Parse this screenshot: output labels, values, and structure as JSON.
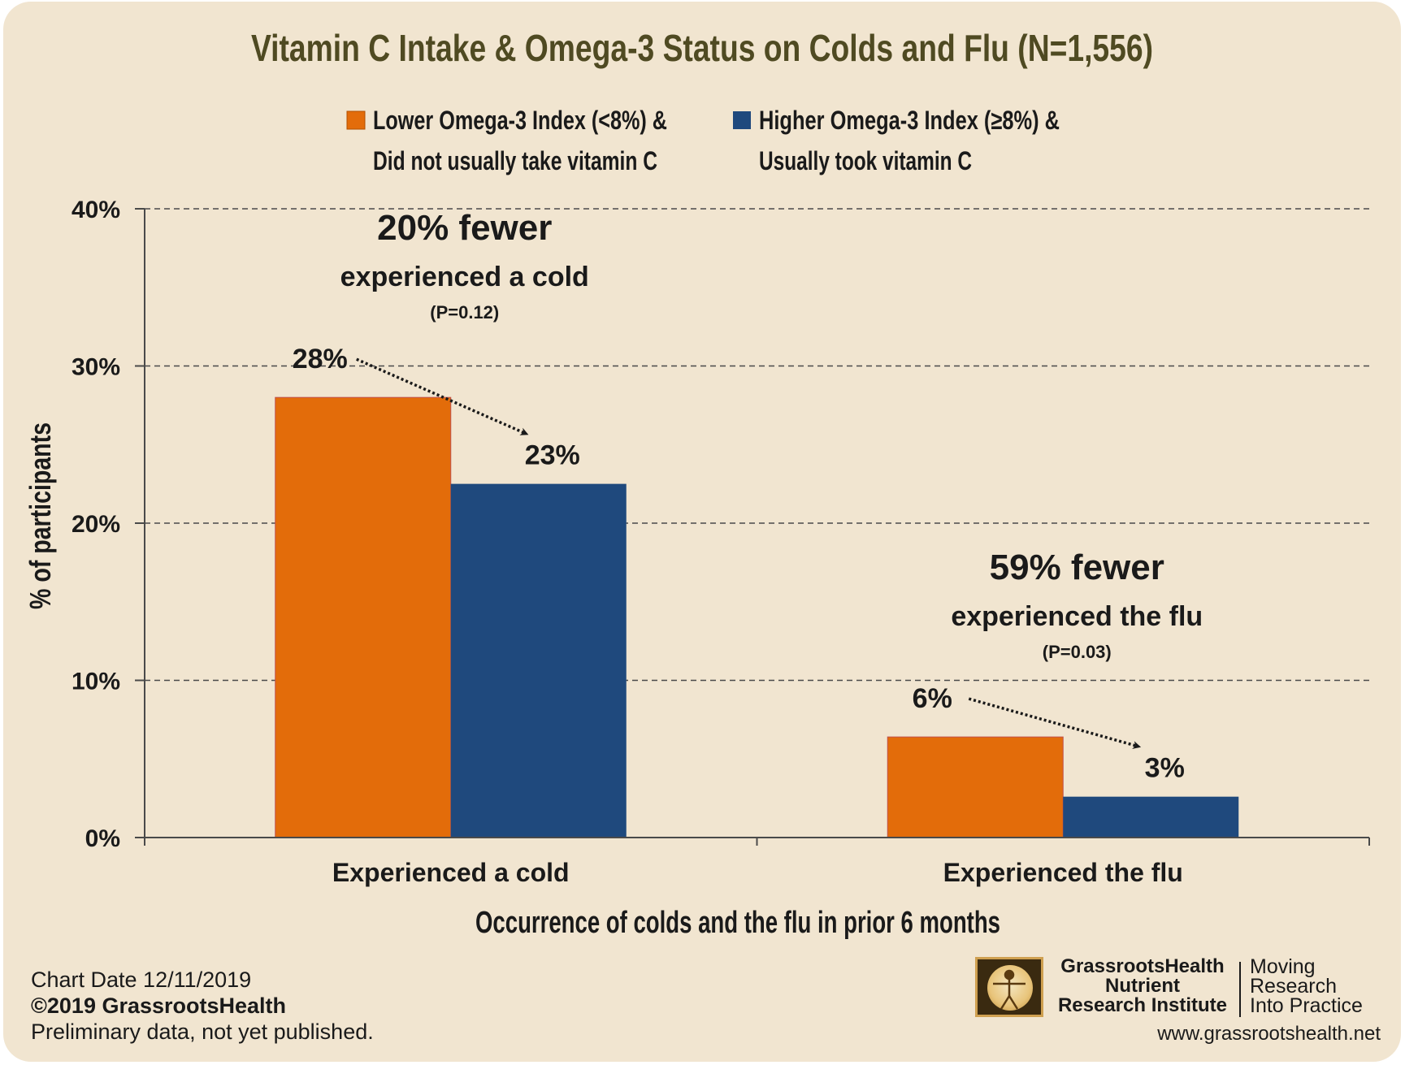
{
  "chart_data": {
    "type": "bar",
    "title": "Vitamin C Intake & Omega-3 Status on Colds and Flu (N=1,556)",
    "xlabel": "Occurrence of colds and the flu in prior 6 months",
    "ylabel": "% of participants",
    "ylim": [
      0,
      40
    ],
    "yticks": [
      0,
      10,
      20,
      30,
      40
    ],
    "ytick_labels": [
      "0%",
      "10%",
      "20%",
      "30%",
      "40%"
    ],
    "categories": [
      "Experienced a cold",
      "Experienced the flu"
    ],
    "series": [
      {
        "name": "Lower Omega-3 Index (<8%) & Did not usually take vitamin C",
        "legend_line1": "Lower Omega-3 Index (<8%) &",
        "legend_line2": "Did not usually take vitamin C",
        "color": "#e36c0a",
        "values": [
          28.0,
          6.4
        ],
        "labels": [
          "28%",
          "6%"
        ]
      },
      {
        "name": "Higher Omega-3 Index (≥8%) & Usually took vitamin C",
        "legend_line1": "Higher Omega-3 Index (≥8%) &",
        "legend_line2": "Usually took vitamin C",
        "color": "#1f497d",
        "values": [
          22.5,
          2.6
        ],
        "labels": [
          "23%",
          "3%"
        ]
      }
    ],
    "annotations": [
      {
        "headline": "20% fewer",
        "text": "experienced a cold",
        "pvalue": "(P=0.12)"
      },
      {
        "headline": "59% fewer",
        "text": "experienced the flu",
        "pvalue": "(P=0.03)"
      }
    ],
    "grid": true,
    "legend_position": "top"
  },
  "footer": {
    "chart_date": "Chart Date 12/11/2019",
    "copyright": "©2019 GrassrootsHealth",
    "note": "Preliminary data, not yet published.",
    "org_line1": "GrassrootsHealth",
    "org_line2": "Nutrient",
    "org_line3": "Research Institute",
    "tag_line1": "Moving",
    "tag_line2": "Research",
    "tag_line3": "Into Practice",
    "url": "www.grassrootshealth.net"
  }
}
